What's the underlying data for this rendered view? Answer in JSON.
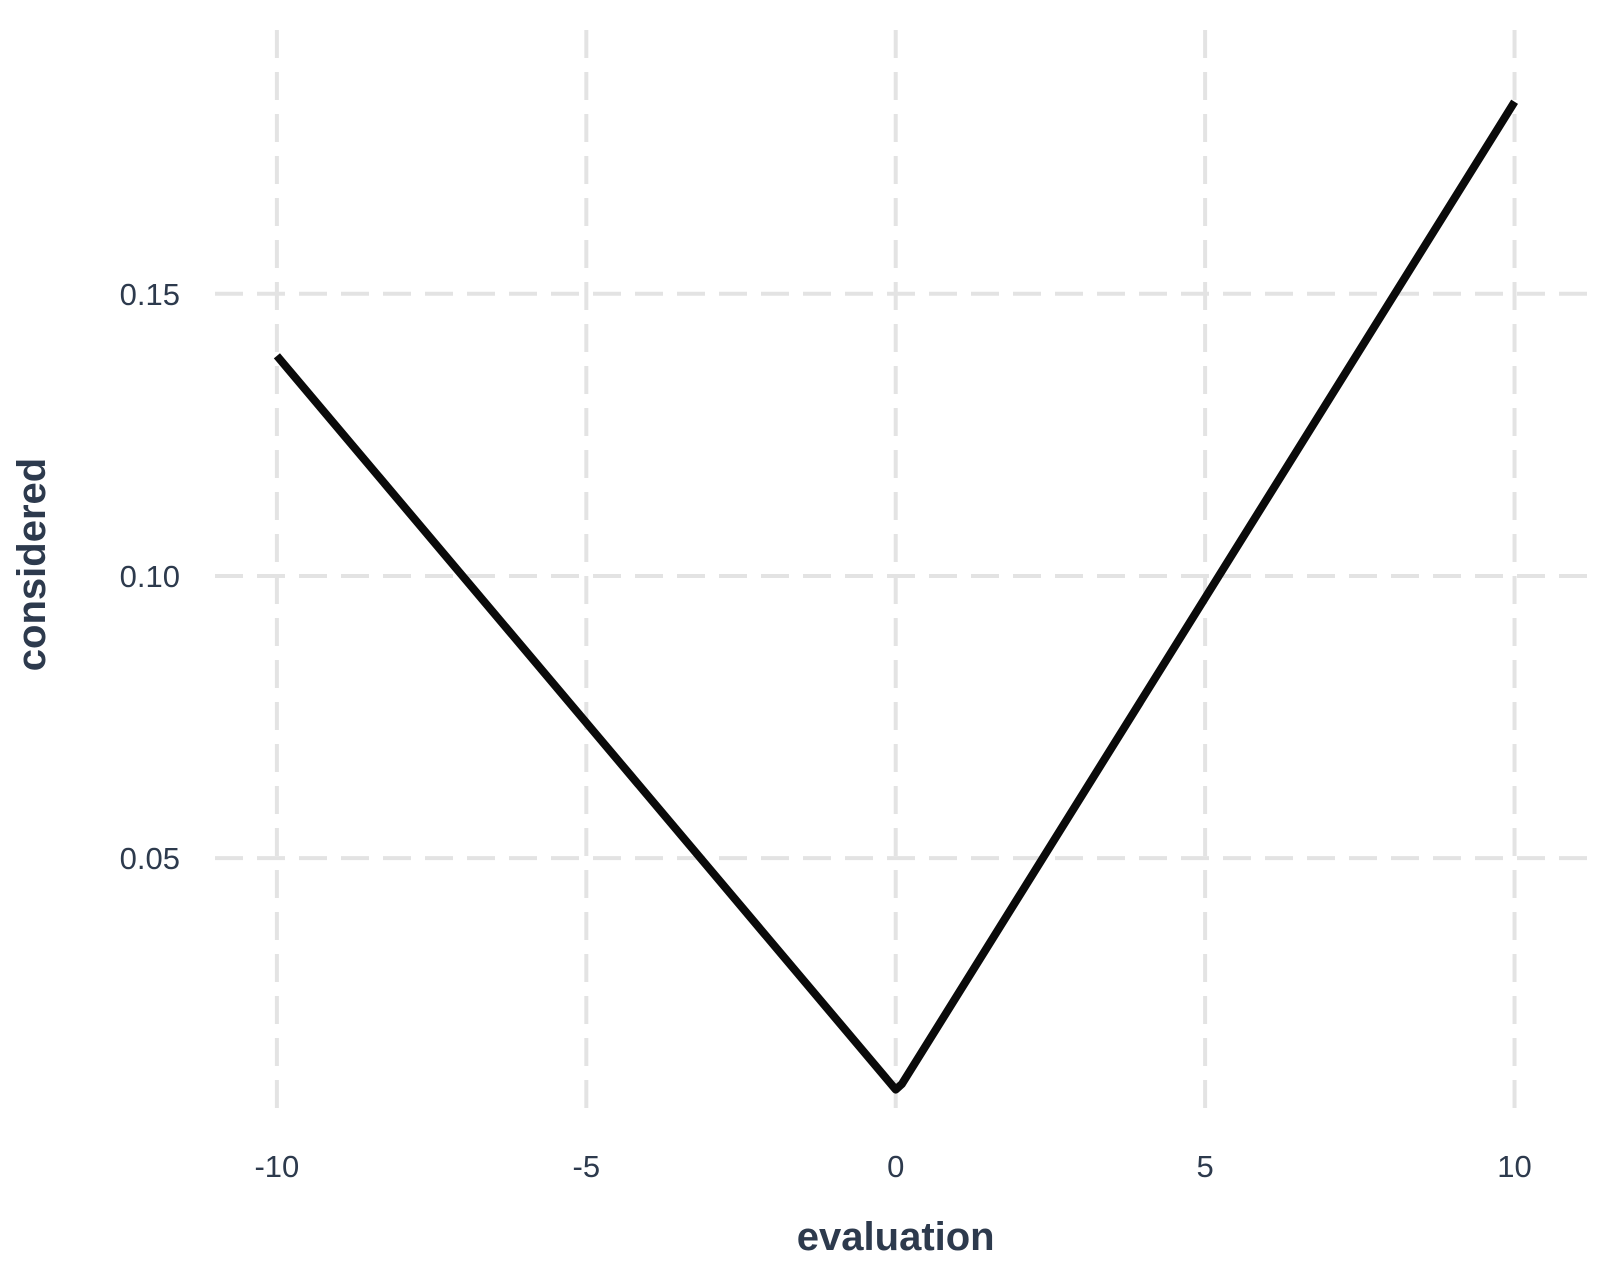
{
  "chart_data": {
    "type": "line",
    "title": "",
    "xlabel": "evaluation",
    "ylabel": "considered",
    "xlim": [
      -11,
      11.3
    ],
    "ylim": [
      0.0045,
      0.1985
    ],
    "x_ticks": [
      -10,
      -5,
      0,
      5,
      10
    ],
    "x_tick_labels": [
      "-10",
      "-5",
      "0",
      "5",
      "10"
    ],
    "y_ticks": [
      0.05,
      0.1,
      0.15
    ],
    "y_tick_labels": [
      "0.05",
      "0.10",
      "0.15"
    ],
    "grid": true,
    "legend": "none",
    "series": [
      {
        "color": "#0a0a0a",
        "x": [
          -10,
          0,
          0.1,
          10
        ],
        "y": [
          0.139,
          0.009,
          0.01,
          0.184
        ]
      }
    ]
  }
}
